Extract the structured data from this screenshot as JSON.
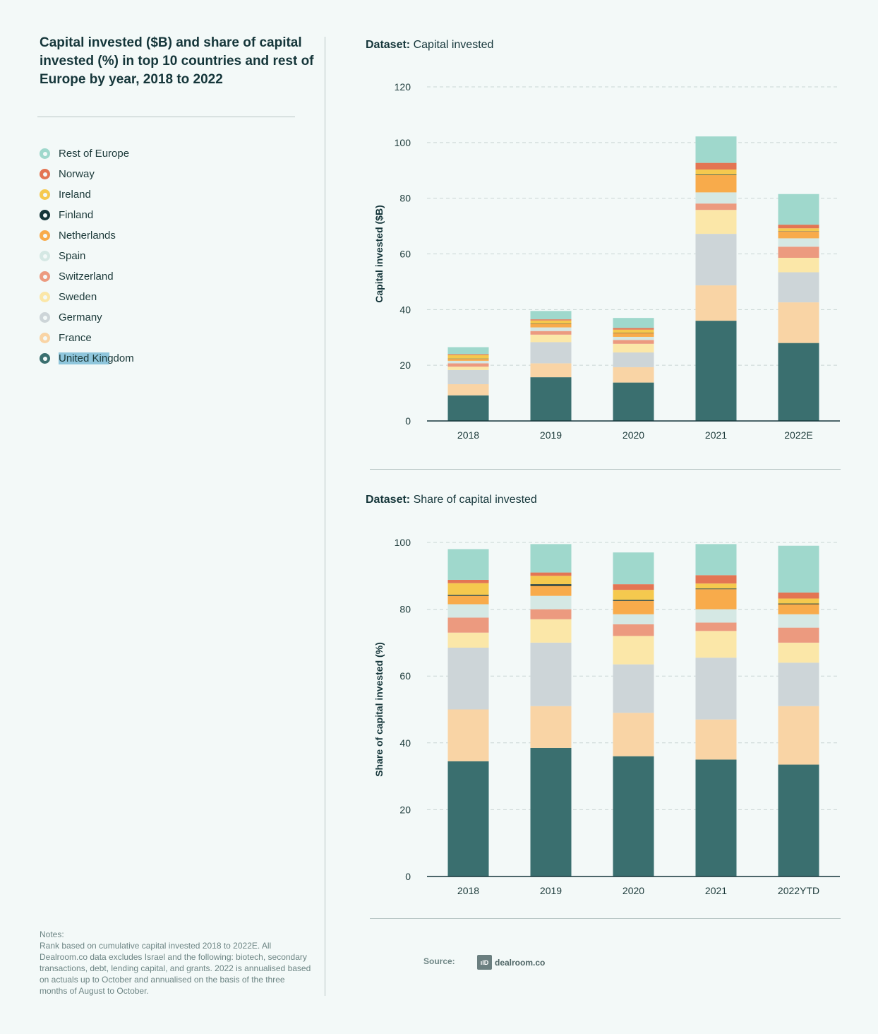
{
  "title": "Capital invested ($B) and share of capital invested (%) in top 10 countries and rest of Europe by year, 2018 to 2022",
  "legend": [
    {
      "label": "Rest of Europe",
      "color": "#9fd8cc"
    },
    {
      "label": "Norway",
      "color": "#e37553"
    },
    {
      "label": "Ireland",
      "color": "#f5c94e"
    },
    {
      "label": "Finland",
      "color": "#15363a"
    },
    {
      "label": "Netherlands",
      "color": "#f8ab4b"
    },
    {
      "label": "Spain",
      "color": "#d5e8e4"
    },
    {
      "label": "Switzerland",
      "color": "#ec9a7f"
    },
    {
      "label": "Sweden",
      "color": "#fbe7a8"
    },
    {
      "label": "Germany",
      "color": "#cdd5d8"
    },
    {
      "label": "France",
      "color": "#f9d4a5"
    },
    {
      "label": "United Kingdom",
      "color": "#3a6f6f"
    }
  ],
  "notes": {
    "heading": "Notes:",
    "text": "Rank based on cumulative capital invested 2018 to 2022E. All Dealroom.co data excludes Israel and the following: biotech, secondary transactions, debt, lending capital, and grants. 2022 is annualised based on actuals up to October and annualised on the basis of the three months of August to October."
  },
  "charts": {
    "capital": {
      "dataset_label": "Dataset:",
      "dataset_name": "Capital invested"
    },
    "share": {
      "dataset_label": "Dataset:",
      "dataset_name": "Share of capital invested"
    }
  },
  "source": {
    "label": "Source:",
    "logo_mark": "ılD",
    "logo_text": "dealroom.co"
  },
  "chart_data": [
    {
      "type": "bar",
      "stacked": true,
      "categories": [
        "2018",
        "2019",
        "2020",
        "2021",
        "2022E"
      ],
      "ylabel": "Capital invested ($B)",
      "ylim": [
        0,
        120
      ],
      "yticks": [
        0,
        20,
        40,
        60,
        80,
        100,
        120
      ],
      "grid": true,
      "series": [
        {
          "name": "United Kingdom",
          "values": [
            9.2,
            15.7,
            13.8,
            36.0,
            28.0
          ]
        },
        {
          "name": "France",
          "values": [
            4.0,
            5.0,
            5.5,
            12.7,
            14.6
          ]
        },
        {
          "name": "Germany",
          "values": [
            5.1,
            7.6,
            5.3,
            18.5,
            10.8
          ]
        },
        {
          "name": "Sweden",
          "values": [
            1.2,
            2.7,
            3.1,
            8.6,
            5.2
          ]
        },
        {
          "name": "Switzerland",
          "values": [
            1.2,
            1.3,
            1.4,
            2.3,
            4.0
          ]
        },
        {
          "name": "Spain",
          "values": [
            0.9,
            1.3,
            1.1,
            4.0,
            3.0
          ]
        },
        {
          "name": "Netherlands",
          "values": [
            0.7,
            1.3,
            1.4,
            6.2,
            2.5
          ]
        },
        {
          "name": "Finland",
          "values": [
            0.1,
            0.1,
            0.1,
            0.2,
            0.1
          ]
        },
        {
          "name": "Ireland",
          "values": [
            1.3,
            1.1,
            1.1,
            1.8,
            1.0
          ]
        },
        {
          "name": "Norway",
          "values": [
            0.3,
            0.4,
            0.6,
            2.4,
            1.3
          ]
        },
        {
          "name": "Rest of Europe",
          "values": [
            2.5,
            3.0,
            3.6,
            9.5,
            11.0
          ]
        }
      ]
    },
    {
      "type": "bar",
      "stacked": true,
      "categories": [
        "2018",
        "2019",
        "2020",
        "2021",
        "2022YTD"
      ],
      "ylabel": "Share of capital invested (%)",
      "ylim": [
        0,
        100
      ],
      "yticks": [
        0,
        20,
        40,
        60,
        80,
        100
      ],
      "grid": true,
      "series": [
        {
          "name": "United Kingdom",
          "values": [
            34.5,
            38.5,
            36.0,
            35.0,
            33.5
          ]
        },
        {
          "name": "France",
          "values": [
            15.5,
            12.5,
            13.0,
            12.0,
            17.5
          ]
        },
        {
          "name": "Germany",
          "values": [
            18.5,
            19.0,
            14.5,
            18.5,
            13.0
          ]
        },
        {
          "name": "Sweden",
          "values": [
            4.5,
            7.0,
            8.5,
            8.0,
            6.0
          ]
        },
        {
          "name": "Switzerland",
          "values": [
            4.5,
            3.0,
            3.5,
            2.5,
            4.5
          ]
        },
        {
          "name": "Spain",
          "values": [
            4.0,
            4.0,
            3.0,
            4.0,
            4.0
          ]
        },
        {
          "name": "Netherlands",
          "values": [
            2.5,
            3.0,
            4.0,
            6.0,
            3.0
          ]
        },
        {
          "name": "Finland",
          "values": [
            0.3,
            0.5,
            0.3,
            0.2,
            0.2
          ]
        },
        {
          "name": "Ireland",
          "values": [
            3.5,
            2.5,
            3.0,
            1.5,
            1.5
          ]
        },
        {
          "name": "Norway",
          "values": [
            1.0,
            1.0,
            1.7,
            2.5,
            1.8
          ]
        },
        {
          "name": "Rest of Europe",
          "values": [
            9.2,
            8.5,
            9.5,
            9.3,
            14.0
          ]
        }
      ]
    }
  ]
}
